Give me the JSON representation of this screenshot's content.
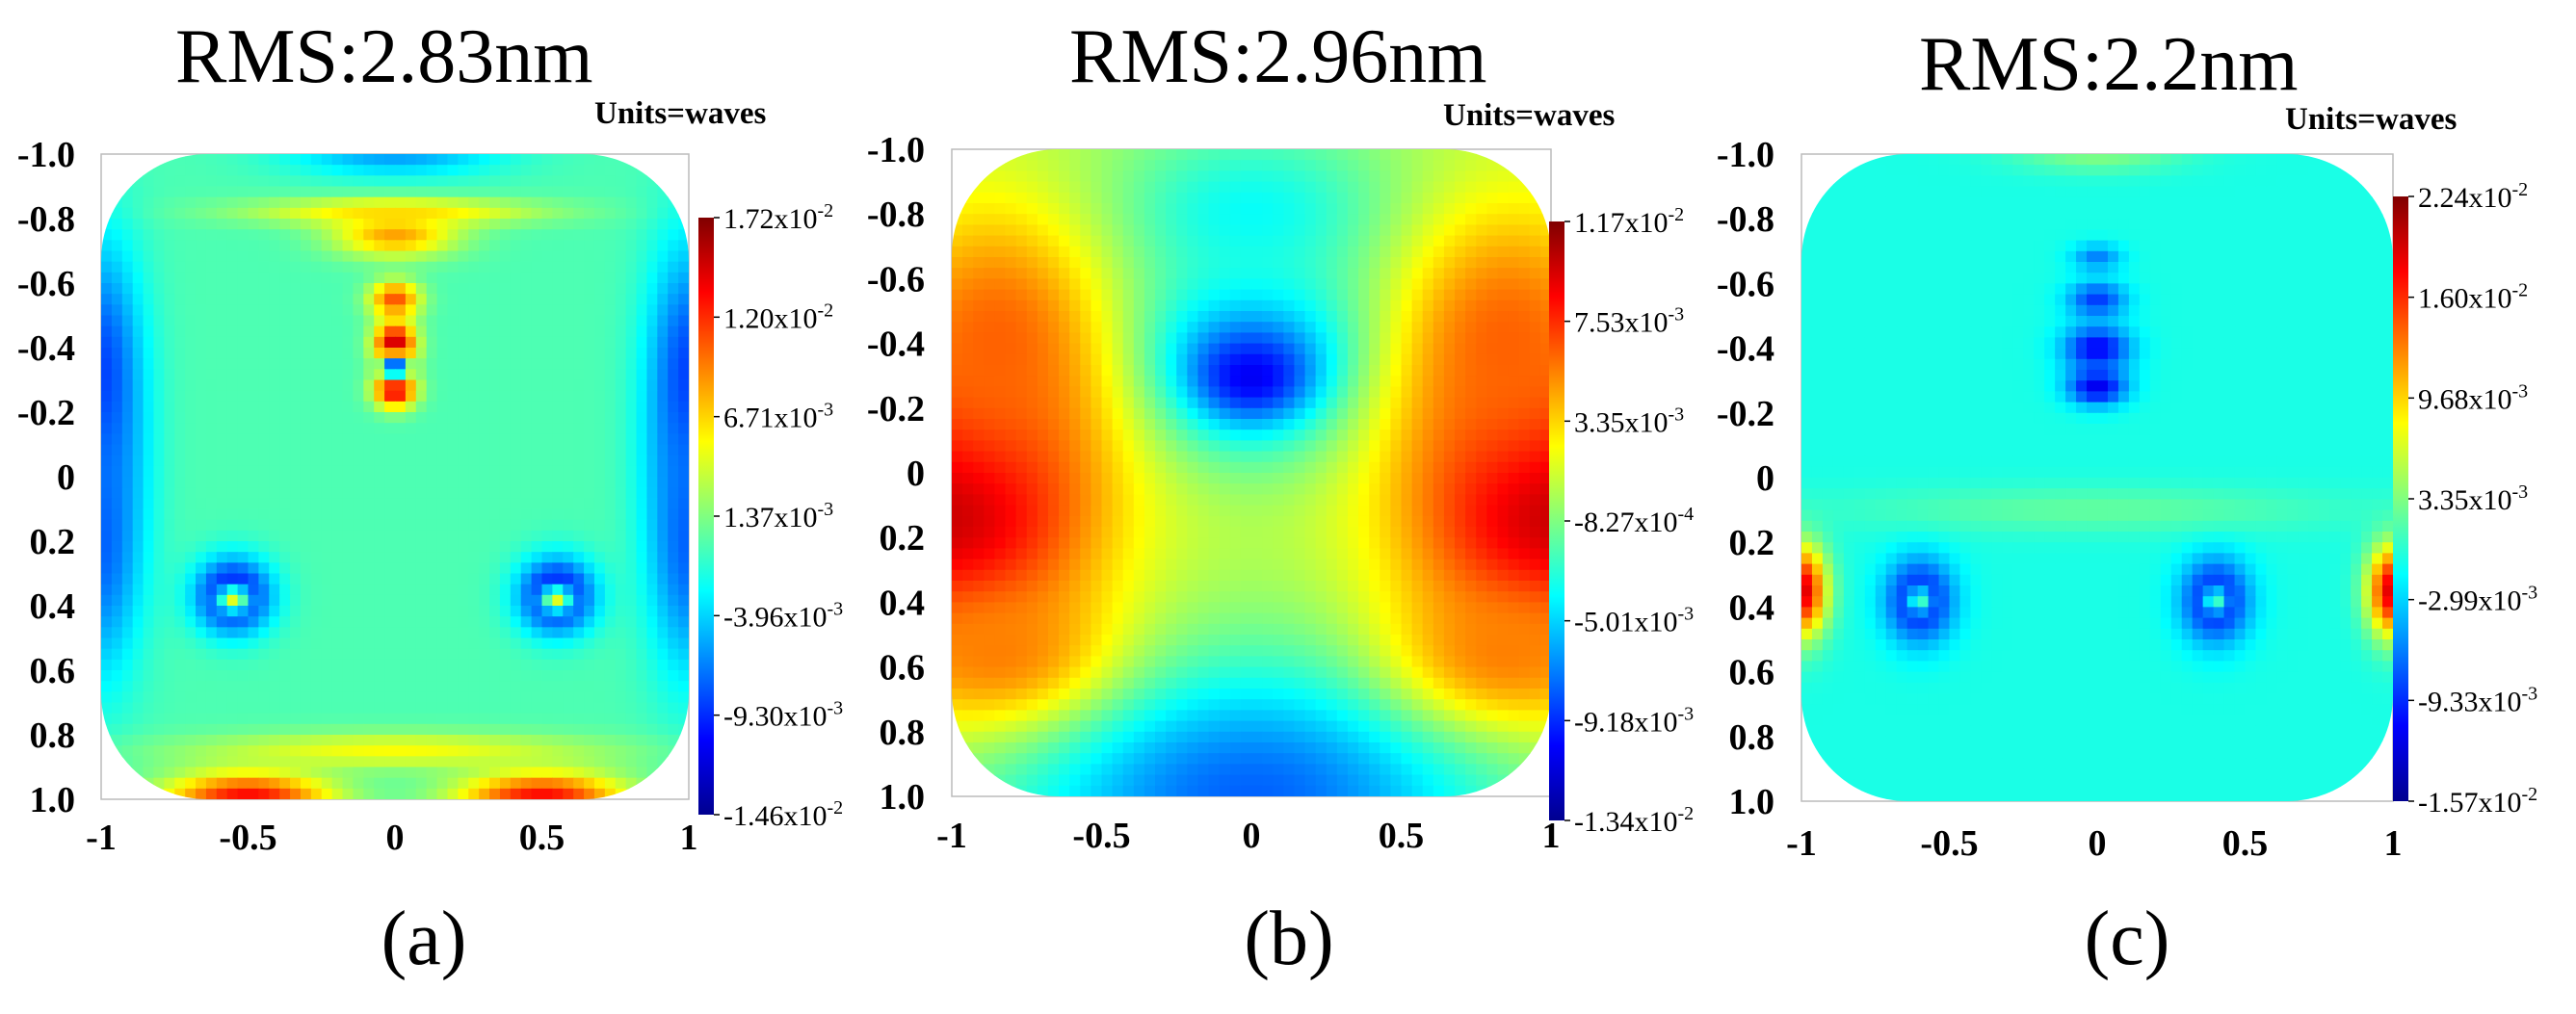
{
  "colormap": [
    "#00008f",
    "#0000ff",
    "#0080ff",
    "#00ffff",
    "#80ff80",
    "#ffff00",
    "#ff8000",
    "#ff0000",
    "#800000"
  ],
  "chart_data": [
    {
      "type": "heatmap",
      "panel_label": "(a)",
      "title": "RMS:2.83nm",
      "units_label": "Units=waves",
      "x_ticks": [
        "-1",
        "-0.5",
        "0",
        "0.5",
        "1"
      ],
      "y_ticks": [
        "-1.0",
        "-0.8",
        "-0.6",
        "-0.4",
        "-0.2",
        "0",
        "0.2",
        "0.4",
        "0.6",
        "0.8",
        "1.0"
      ],
      "xlim": [
        -1,
        1
      ],
      "ylim": [
        -1,
        1
      ],
      "colorbar": {
        "min": -0.0146,
        "max": 0.0172,
        "tick_labels": [
          {
            "m": "1.72",
            "e": "-2"
          },
          {
            "m": "1.20",
            "e": "-2"
          },
          {
            "m": "6.71",
            "e": "-3"
          },
          {
            "m": "1.37",
            "e": "-3"
          },
          {
            "m": "-3.96",
            "e": "-3"
          },
          {
            "m": "-9.30",
            "e": "-3"
          },
          {
            "m": "-1.46",
            "e": "-2"
          }
        ]
      },
      "base_level": 0.45,
      "features": [
        {
          "x": 0.0,
          "y": -0.41,
          "sx": 0.05,
          "sy": 0.05,
          "v": 0.95
        },
        {
          "x": 0.0,
          "y": -0.27,
          "sx": 0.05,
          "sy": 0.04,
          "v": 0.92
        },
        {
          "x": 0.0,
          "y": -0.55,
          "sx": 0.06,
          "sy": 0.04,
          "v": 0.8
        },
        {
          "x": 0.0,
          "y": -0.34,
          "sx": 0.03,
          "sy": 0.025,
          "v": 0.1
        },
        {
          "x": 0.0,
          "y": -0.75,
          "sx": 0.15,
          "sy": 0.05,
          "v": 0.72
        },
        {
          "x": 0.0,
          "y": -0.82,
          "sx": 0.35,
          "sy": 0.03,
          "v": 0.66
        },
        {
          "x": -0.55,
          "y": 0.37,
          "sx": 0.09,
          "sy": 0.08,
          "v": 0.05
        },
        {
          "x": 0.55,
          "y": 0.37,
          "sx": 0.09,
          "sy": 0.08,
          "v": 0.05
        },
        {
          "x": -0.55,
          "y": 0.38,
          "sx": 0.04,
          "sy": 0.03,
          "v": 0.6
        },
        {
          "x": 0.55,
          "y": 0.38,
          "sx": 0.04,
          "sy": 0.03,
          "v": 0.6
        },
        {
          "x": -1.0,
          "y": -0.3,
          "sx": 0.1,
          "sy": 0.3,
          "v": 0.18
        },
        {
          "x": 1.0,
          "y": -0.3,
          "sx": 0.1,
          "sy": 0.3,
          "v": 0.18
        },
        {
          "x": -1.0,
          "y": 0.2,
          "sx": 0.1,
          "sy": 0.3,
          "v": 0.22
        },
        {
          "x": 1.0,
          "y": 0.2,
          "sx": 0.1,
          "sy": 0.3,
          "v": 0.22
        },
        {
          "x": -0.5,
          "y": 1.0,
          "sx": 0.2,
          "sy": 0.06,
          "v": 0.88
        },
        {
          "x": 0.5,
          "y": 1.0,
          "sx": 0.2,
          "sy": 0.06,
          "v": 0.88
        },
        {
          "x": 0.0,
          "y": 0.85,
          "sx": 0.5,
          "sy": 0.04,
          "v": 0.62
        },
        {
          "x": 0.0,
          "y": -1.0,
          "sx": 0.25,
          "sy": 0.05,
          "v": 0.28
        }
      ]
    },
    {
      "type": "heatmap",
      "panel_label": "(b)",
      "title": "RMS:2.96nm",
      "units_label": "Units=waves",
      "x_ticks": [
        "-1",
        "-0.5",
        "0",
        "0.5",
        "1"
      ],
      "y_ticks": [
        "-1.0",
        "-0.8",
        "-0.6",
        "-0.4",
        "-0.2",
        "0",
        "0.2",
        "0.4",
        "0.6",
        "0.8",
        "1.0"
      ],
      "xlim": [
        -1,
        1
      ],
      "ylim": [
        -1,
        1
      ],
      "colorbar": {
        "min": -0.0134,
        "max": 0.0117,
        "tick_labels": [
          {
            "m": "1.17",
            "e": "-2"
          },
          {
            "m": "7.53",
            "e": "-3"
          },
          {
            "m": "3.35",
            "e": "-3"
          },
          {
            "m": "-8.27",
            "e": "-4"
          },
          {
            "m": "-5.01",
            "e": "-3"
          },
          {
            "m": "-9.18",
            "e": "-3"
          },
          {
            "m": "-1.34",
            "e": "-2"
          }
        ]
      },
      "base_level": 0.55,
      "features": [
        {
          "x": 0.0,
          "y": -0.35,
          "sx": 0.28,
          "sy": 0.2,
          "v": 0.2
        },
        {
          "x": 0.0,
          "y": -0.3,
          "sx": 0.12,
          "sy": 0.08,
          "v": 0.08
        },
        {
          "x": 0.0,
          "y": -0.8,
          "sx": 0.35,
          "sy": 0.2,
          "v": 0.38
        },
        {
          "x": 0.0,
          "y": 1.0,
          "sx": 0.6,
          "sy": 0.3,
          "v": 0.22
        },
        {
          "x": -1.0,
          "y": 0.1,
          "sx": 0.35,
          "sy": 0.35,
          "v": 0.96
        },
        {
          "x": 1.0,
          "y": 0.1,
          "sx": 0.35,
          "sy": 0.35,
          "v": 0.96
        },
        {
          "x": -0.85,
          "y": -0.4,
          "sx": 0.25,
          "sy": 0.3,
          "v": 0.78
        },
        {
          "x": 0.85,
          "y": -0.4,
          "sx": 0.25,
          "sy": 0.3,
          "v": 0.78
        },
        {
          "x": -0.85,
          "y": 0.55,
          "sx": 0.25,
          "sy": 0.15,
          "v": 0.75
        },
        {
          "x": 0.85,
          "y": 0.55,
          "sx": 0.25,
          "sy": 0.15,
          "v": 0.75
        }
      ]
    },
    {
      "type": "heatmap",
      "panel_label": "(c)",
      "title": "RMS:2.2nm",
      "units_label": "Units=waves",
      "x_ticks": [
        "-1",
        "-0.5",
        "0",
        "0.5",
        "1"
      ],
      "y_ticks": [
        "-1.0",
        "-0.8",
        "-0.6",
        "-0.4",
        "-0.2",
        "0",
        "0.2",
        "0.4",
        "0.6",
        "0.8",
        "1.0"
      ],
      "xlim": [
        -1,
        1
      ],
      "ylim": [
        -1,
        1
      ],
      "colorbar": {
        "min": -0.0157,
        "max": 0.0224,
        "tick_labels": [
          {
            "m": "2.24",
            "e": "-2"
          },
          {
            "m": "1.60",
            "e": "-2"
          },
          {
            "m": "9.68",
            "e": "-3"
          },
          {
            "m": "3.35",
            "e": "-3"
          },
          {
            "m": "-2.99",
            "e": "-3"
          },
          {
            "m": "-9.33",
            "e": "-3"
          },
          {
            "m": "-1.57",
            "e": "-2"
          }
        ]
      },
      "base_level": 0.4,
      "features": [
        {
          "x": 0.0,
          "y": -0.4,
          "sx": 0.08,
          "sy": 0.05,
          "v": 0.12
        },
        {
          "x": 0.0,
          "y": -0.28,
          "sx": 0.07,
          "sy": 0.04,
          "v": 0.1
        },
        {
          "x": 0.0,
          "y": -0.55,
          "sx": 0.07,
          "sy": 0.04,
          "v": 0.18
        },
        {
          "x": 0.0,
          "y": -0.68,
          "sx": 0.06,
          "sy": 0.03,
          "v": 0.25
        },
        {
          "x": -0.6,
          "y": 0.38,
          "sx": 0.08,
          "sy": 0.09,
          "v": 0.1
        },
        {
          "x": 0.4,
          "y": 0.38,
          "sx": 0.08,
          "sy": 0.09,
          "v": 0.1
        },
        {
          "x": -0.6,
          "y": 0.38,
          "sx": 0.03,
          "sy": 0.03,
          "v": 0.45
        },
        {
          "x": 0.4,
          "y": 0.38,
          "sx": 0.03,
          "sy": 0.03,
          "v": 0.45
        },
        {
          "x": -1.0,
          "y": 0.35,
          "sx": 0.06,
          "sy": 0.1,
          "v": 0.92
        },
        {
          "x": 1.0,
          "y": 0.35,
          "sx": 0.06,
          "sy": 0.1,
          "v": 0.92
        },
        {
          "x": 0.0,
          "y": -1.0,
          "sx": 0.2,
          "sy": 0.04,
          "v": 0.5
        },
        {
          "x": 0.0,
          "y": 0.1,
          "sx": 0.6,
          "sy": 0.05,
          "v": 0.47
        }
      ]
    }
  ]
}
